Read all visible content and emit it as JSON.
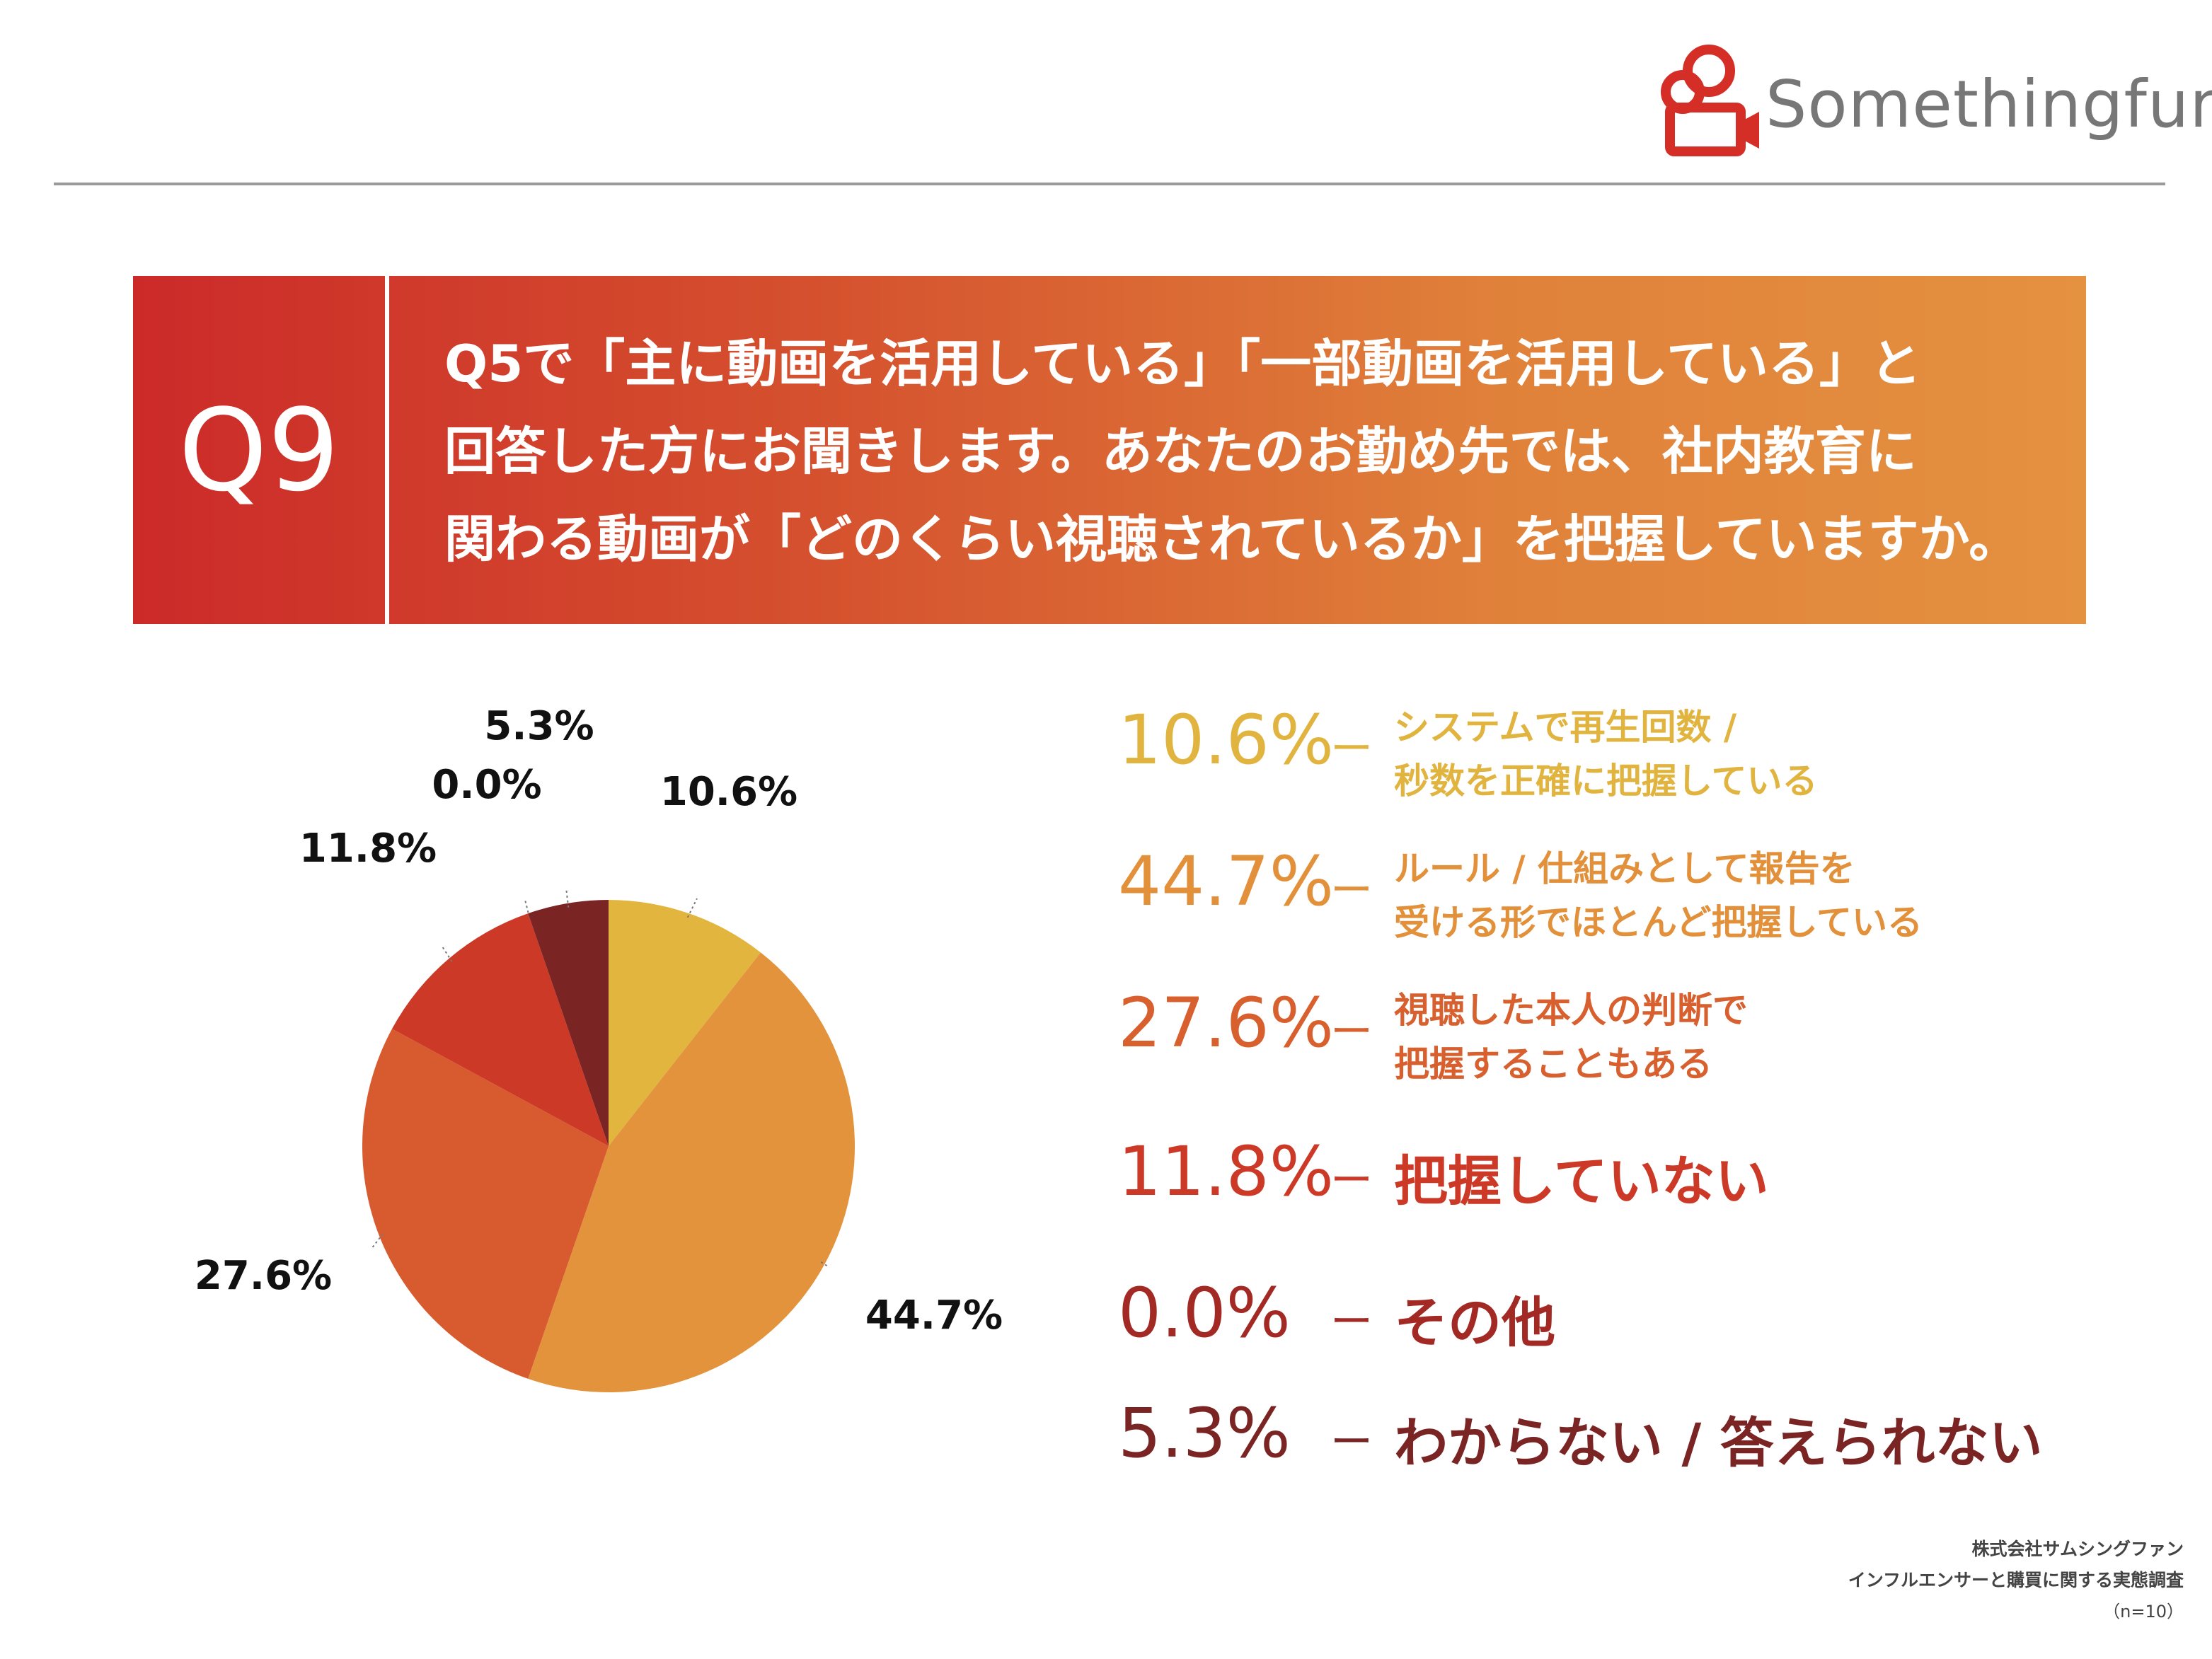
{
  "brand": {
    "name": "Somethingfun!",
    "logo_icon": "film-camera-icon",
    "accent": "#d42e27"
  },
  "question": {
    "number": "Q9",
    "lines": [
      "Q5で「主に動画を活用している」「一部動画を活用している」と",
      "回答した方にお聞きします。あなたのお勤め先では、社内教育に",
      "関わる動画が「どのくらい視聴されているか」を把握していますか。"
    ]
  },
  "chart_data": {
    "type": "pie",
    "title": "",
    "slices": [
      {
        "label": "システムで再生回数 / 秒数を正確に把握している",
        "value": 10.6,
        "display": "10.6%",
        "color": "#e2b53f"
      },
      {
        "label": "ルール / 仕組みとして報告を受ける形でほとんど把握している",
        "value": 44.7,
        "display": "44.7%",
        "color": "#e2933c"
      },
      {
        "label": "視聴した本人の判断で把握することもある",
        "value": 27.6,
        "display": "27.6%",
        "color": "#d85a2f"
      },
      {
        "label": "把握していない",
        "value": 11.8,
        "display": "11.8%",
        "color": "#cc3a27"
      },
      {
        "label": "その他",
        "value": 0.0,
        "display": "0.0%",
        "color": "#a32a24"
      },
      {
        "label": "わからない / 答えられない",
        "value": 5.3,
        "display": "5.3%",
        "color": "#7a2424"
      }
    ]
  },
  "legend": {
    "dash": "ー",
    "items": [
      {
        "pct": "10.6%",
        "lines": [
          "システムで再生回数 /",
          "秒数を正確に把握している"
        ],
        "color": "#e1b43f"
      },
      {
        "pct": "44.7%",
        "lines": [
          "ルール / 仕組みとして報告を",
          "受ける形でほとんど把握している"
        ],
        "color": "#e2903a"
      },
      {
        "pct": "27.6%",
        "lines": [
          "視聴した本人の判断で",
          "把握することもある"
        ],
        "color": "#d8602f"
      },
      {
        "pct": "11.8%",
        "lines": [
          "把握していない"
        ],
        "color": "#cc3a27"
      },
      {
        "pct": "0.0%",
        "lines": [
          "その他"
        ],
        "color": "#a32a24"
      },
      {
        "pct": "5.3%",
        "lines": [
          "わからない / 答えられない"
        ],
        "color": "#7a2424"
      }
    ]
  },
  "footer": {
    "company": "株式会社サムシングファン",
    "survey": "インフルエンサーと購買に関する実態調査",
    "sample": "（n=10）"
  }
}
